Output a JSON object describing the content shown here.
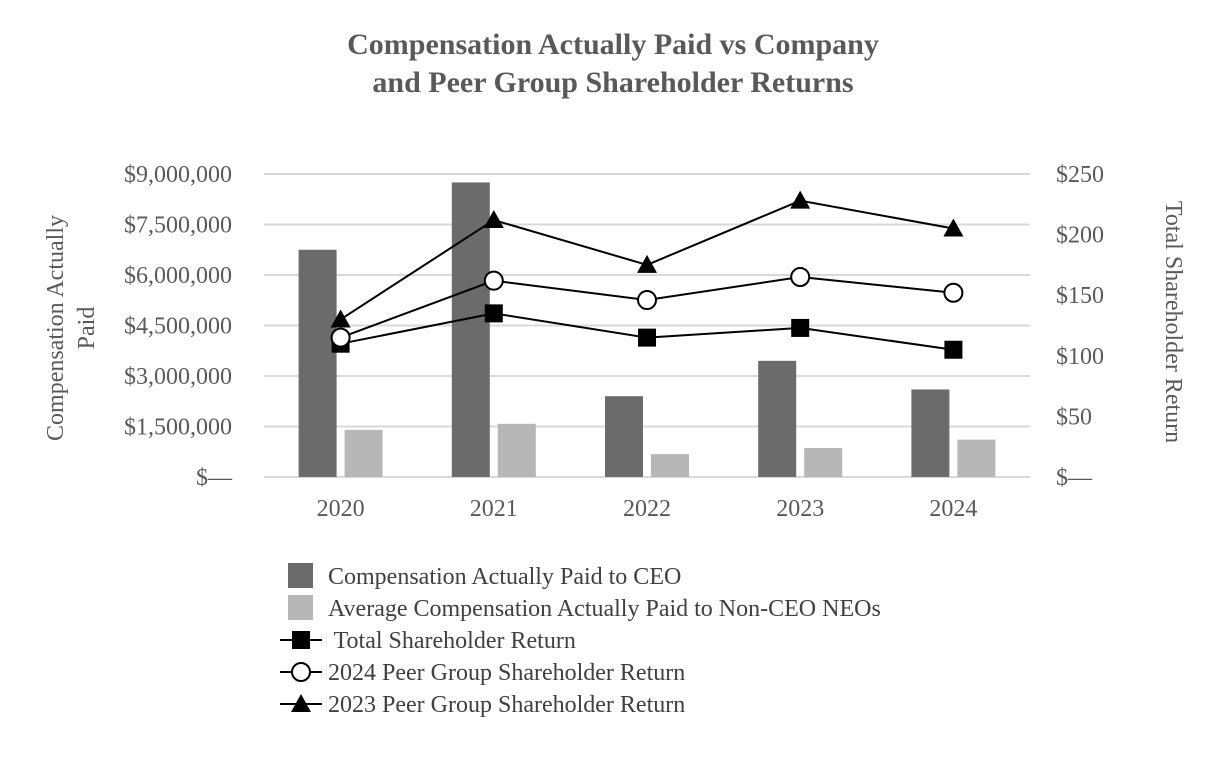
{
  "chart_data": {
    "type": "bar",
    "title_lines": [
      "Compensation Actually Paid vs Company",
      "and Peer Group Shareholder Returns"
    ],
    "categories": [
      "2020",
      "2021",
      "2022",
      "2023",
      "2024"
    ],
    "y_left": {
      "label_lines": [
        "Compensation Actually",
        "Paid"
      ],
      "ylim": [
        0,
        9000000
      ],
      "ticks": [
        0,
        1500000,
        3000000,
        4500000,
        6000000,
        7500000,
        9000000
      ],
      "tick_labels": [
        "$—",
        "$1,500,000",
        "$3,000,000",
        "$4,500,000",
        "$6,000,000",
        "$7,500,000",
        "$9,000,000"
      ]
    },
    "y_right": {
      "label": "Total Shareholder Return",
      "ylim": [
        0,
        250
      ],
      "ticks": [
        0,
        50,
        100,
        150,
        200,
        250
      ],
      "tick_labels": [
        "$—",
        "$50",
        "$100",
        "$150",
        "$200",
        "$250"
      ]
    },
    "grid": true,
    "series": [
      {
        "name": "Compensation Actually Paid to CEO",
        "kind": "bar",
        "axis": "left",
        "color": "#6b6b6b",
        "values": [
          6750000,
          8750000,
          2400000,
          3450000,
          2600000
        ]
      },
      {
        "name": "Average Compensation Actually Paid to Non-CEO NEOs",
        "kind": "bar",
        "axis": "left",
        "color": "#b7b7b7",
        "values": [
          1400000,
          1580000,
          680000,
          860000,
          1110000
        ]
      },
      {
        "name": "Total Shareholder Return",
        "kind": "line",
        "axis": "right",
        "marker": "square",
        "color": "#000000",
        "values": [
          110,
          135,
          115,
          123,
          105
        ]
      },
      {
        "name": "2024 Peer Group Shareholder Return",
        "kind": "line",
        "axis": "right",
        "marker": "circle",
        "color": "#000000",
        "values": [
          115,
          162,
          146,
          165,
          152
        ]
      },
      {
        "name": "2023 Peer Group Shareholder Return",
        "kind": "line",
        "axis": "right",
        "marker": "triangle",
        "color": "#000000",
        "values": [
          130,
          212,
          175,
          228,
          205
        ]
      }
    ],
    "legend": {
      "position": "bottom",
      "labels": [
        "Compensation Actually Paid to CEO",
        "Average Compensation Actually Paid to Non-CEO NEOs",
        " Total Shareholder Return",
        "2024 Peer Group Shareholder Return",
        "2023 Peer Group Shareholder Return"
      ]
    }
  }
}
